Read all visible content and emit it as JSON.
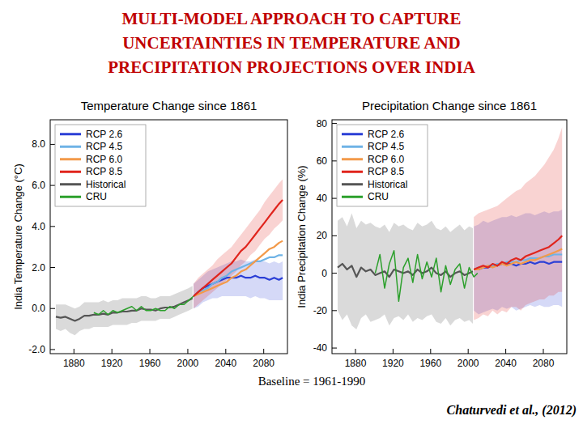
{
  "header": {
    "title": [
      "MULTI-MODEL APPROACH TO CAPTURE",
      "UNCERTAINTIES IN TEMPERATURE AND",
      "PRECIPITATION PROJECTIONS OVER INDIA"
    ]
  },
  "footer": {
    "baseline": "Baseline = 1961-1990",
    "source": "Chaturvedi et al., (2012)"
  },
  "chart_data": [
    {
      "type": "line",
      "title": "Temperature Change since 1861",
      "y_label": "India Temperature Change (°C)",
      "xlim": [
        1855,
        2105
      ],
      "xticks": [
        1880,
        1920,
        1960,
        2000,
        2040,
        2080
      ],
      "ylim": [
        -2.2,
        9.2
      ],
      "yticks": [
        {
          "value": -2,
          "label": "-2.0"
        },
        {
          "value": 0,
          "label": "0.0"
        },
        {
          "value": 2,
          "label": "2.0"
        },
        {
          "value": 4,
          "label": "4.0"
        },
        {
          "value": 6,
          "label": "6.0"
        },
        {
          "value": 8,
          "label": "8.0"
        }
      ],
      "grid": false,
      "legend": "upper left",
      "series": [
        {
          "name": "RCP 2.6",
          "color": "#2b3fd6",
          "x": [
            2006,
            2011,
            2016,
            2021,
            2026,
            2031,
            2036,
            2041,
            2046,
            2051,
            2056,
            2061,
            2066,
            2071,
            2076,
            2081,
            2086,
            2091,
            2096,
            2100
          ],
          "values": [
            0.6,
            0.8,
            1.0,
            1.1,
            1.2,
            1.3,
            1.4,
            1.5,
            1.5,
            1.5,
            1.6,
            1.5,
            1.5,
            1.6,
            1.5,
            1.5,
            1.4,
            1.5,
            1.4,
            1.5
          ],
          "lower": [
            0,
            0.1,
            0.3,
            0.4,
            0.5,
            0.5,
            0.6,
            0.6,
            0.6,
            0.6,
            0.6,
            0.6,
            0.5,
            0.6,
            0.5,
            0.5,
            0.4,
            0.4,
            0.4,
            0.4
          ],
          "upper": [
            1.2,
            1.4,
            1.6,
            1.8,
            1.9,
            2.0,
            2.1,
            2.2,
            2.3,
            2.3,
            2.4,
            2.3,
            2.3,
            2.4,
            2.3,
            2.3,
            2.2,
            2.3,
            2.2,
            2.3
          ]
        },
        {
          "name": "RCP 4.5",
          "color": "#6fb3e6",
          "x": [
            2006,
            2011,
            2016,
            2021,
            2026,
            2031,
            2036,
            2041,
            2046,
            2051,
            2056,
            2061,
            2066,
            2071,
            2076,
            2081,
            2086,
            2091,
            2096,
            2100
          ],
          "values": [
            0.6,
            0.8,
            0.9,
            1.0,
            1.2,
            1.3,
            1.5,
            1.6,
            1.8,
            1.9,
            2.0,
            2.1,
            2.2,
            2.3,
            2.3,
            2.4,
            2.5,
            2.5,
            2.6,
            2.6
          ]
        },
        {
          "name": "RCP 6.0",
          "color": "#f39a4a",
          "x": [
            2006,
            2011,
            2016,
            2021,
            2026,
            2031,
            2036,
            2041,
            2046,
            2051,
            2056,
            2061,
            2066,
            2071,
            2076,
            2081,
            2086,
            2091,
            2096,
            2100
          ],
          "values": [
            0.6,
            0.7,
            0.8,
            0.9,
            1.0,
            1.1,
            1.2,
            1.3,
            1.5,
            1.6,
            1.8,
            1.9,
            2.1,
            2.3,
            2.5,
            2.7,
            2.9,
            3.0,
            3.2,
            3.3
          ]
        },
        {
          "name": "RCP 8.5",
          "color": "#e0241c",
          "x": [
            2006,
            2011,
            2016,
            2021,
            2026,
            2031,
            2036,
            2041,
            2046,
            2051,
            2056,
            2061,
            2066,
            2071,
            2076,
            2081,
            2086,
            2091,
            2096,
            2100
          ],
          "values": [
            0.6,
            0.8,
            1.0,
            1.2,
            1.4,
            1.6,
            1.8,
            2.0,
            2.2,
            2.5,
            2.8,
            3.0,
            3.3,
            3.6,
            3.9,
            4.2,
            4.5,
            4.8,
            5.1,
            5.3
          ],
          "lower": [
            0,
            0.2,
            0.4,
            0.6,
            0.8,
            1.0,
            1.2,
            1.4,
            1.6,
            1.8,
            2.1,
            2.3,
            2.6,
            2.8,
            3.1,
            3.4,
            3.6,
            3.9,
            4.1,
            4.3
          ],
          "upper": [
            1.2,
            1.5,
            1.7,
            1.9,
            2.1,
            2.4,
            2.6,
            2.8,
            3.0,
            3.3,
            3.6,
            3.9,
            4.2,
            4.5,
            4.8,
            5.2,
            5.5,
            5.8,
            6.1,
            6.3
          ]
        },
        {
          "name": "Historical",
          "color": "#555555",
          "x": [
            1861,
            1866,
            1871,
            1876,
            1881,
            1886,
            1891,
            1896,
            1901,
            1906,
            1911,
            1916,
            1921,
            1926,
            1931,
            1936,
            1941,
            1946,
            1951,
            1956,
            1961,
            1966,
            1971,
            1976,
            1981,
            1986,
            1991,
            1996,
            2001,
            2005
          ],
          "values": [
            -0.4,
            -0.45,
            -0.4,
            -0.5,
            -0.6,
            -0.5,
            -0.35,
            -0.35,
            -0.3,
            -0.3,
            -0.25,
            -0.3,
            -0.2,
            -0.2,
            -0.15,
            -0.15,
            -0.1,
            -0.1,
            0,
            -0.05,
            -0.05,
            -0.1,
            0,
            0.05,
            0.05,
            0.1,
            0.2,
            0.3,
            0.4,
            0.5
          ],
          "lower": [
            -1.0,
            -1.1,
            -1.0,
            -1.2,
            -1.3,
            -1.1,
            -1.0,
            -1.0,
            -0.9,
            -0.9,
            -0.9,
            -0.9,
            -0.8,
            -0.8,
            -0.8,
            -0.8,
            -0.7,
            -0.7,
            -0.6,
            -0.6,
            -0.6,
            -0.6,
            -0.5,
            -0.5,
            -0.5,
            -0.4,
            -0.3,
            -0.2,
            -0.1,
            0.0
          ],
          "upper": [
            0.2,
            0.2,
            0.2,
            0.1,
            0.0,
            0.1,
            0.3,
            0.3,
            0.3,
            0.3,
            0.4,
            0.3,
            0.4,
            0.4,
            0.5,
            0.5,
            0.5,
            0.5,
            0.6,
            0.6,
            0.5,
            0.5,
            0.6,
            0.6,
            0.6,
            0.7,
            0.8,
            0.9,
            1.0,
            1.1
          ]
        },
        {
          "name": "CRU",
          "color": "#2ca02c",
          "x": [
            1901,
            1906,
            1911,
            1916,
            1921,
            1926,
            1931,
            1936,
            1941,
            1946,
            1951,
            1956,
            1961,
            1966,
            1971,
            1976,
            1981,
            1986,
            1991,
            1996,
            2001,
            2006,
            2010
          ],
          "values": [
            -0.2,
            -0.3,
            -0.1,
            -0.3,
            -0.1,
            -0.2,
            -0.1,
            0,
            0.1,
            -0.1,
            0.1,
            -0.1,
            -0.1,
            0,
            -0.1,
            -0.1,
            0.1,
            0,
            0.2,
            0.2,
            0.4,
            0.6,
            0.7
          ]
        }
      ]
    },
    {
      "type": "line",
      "title": "Precipitation Change since 1861",
      "y_label": "India Precipitation Change (%)",
      "xlim": [
        1855,
        2105
      ],
      "xticks": [
        1880,
        1920,
        1960,
        2000,
        2040,
        2080
      ],
      "ylim": [
        -43,
        82
      ],
      "yticks": [
        -40,
        -20,
        0,
        20,
        40,
        60,
        80
      ],
      "grid": false,
      "legend": "upper left",
      "series": [
        {
          "name": "RCP 2.6",
          "color": "#2b3fd6",
          "x": [
            2006,
            2011,
            2016,
            2021,
            2026,
            2031,
            2036,
            2041,
            2046,
            2051,
            2056,
            2061,
            2066,
            2071,
            2076,
            2081,
            2086,
            2091,
            2096,
            2100
          ],
          "values": [
            2,
            2,
            3,
            3,
            4,
            4,
            5,
            5,
            5,
            4,
            5,
            5,
            6,
            5,
            6,
            6,
            5,
            6,
            6,
            6
          ],
          "lower": [
            -20,
            -22,
            -21,
            -20,
            -19,
            -20,
            -18,
            -19,
            -18,
            -20,
            -19,
            -18,
            -17,
            -18,
            -17,
            -18,
            -18,
            -17,
            -17,
            -18
          ],
          "upper": [
            25,
            26,
            28,
            27,
            28,
            29,
            30,
            30,
            31,
            30,
            31,
            32,
            32,
            31,
            32,
            33,
            32,
            33,
            33,
            34
          ]
        },
        {
          "name": "RCP 4.5",
          "color": "#6fb3e6",
          "x": [
            2006,
            2011,
            2016,
            2021,
            2026,
            2031,
            2036,
            2041,
            2046,
            2051,
            2056,
            2061,
            2066,
            2071,
            2076,
            2081,
            2086,
            2091,
            2096,
            2100
          ],
          "values": [
            2,
            3,
            3,
            4,
            4,
            5,
            5,
            6,
            6,
            6,
            7,
            7,
            8,
            8,
            8,
            9,
            9,
            10,
            10,
            10
          ]
        },
        {
          "name": "RCP 6.0",
          "color": "#f39a4a",
          "x": [
            2006,
            2011,
            2016,
            2021,
            2026,
            2031,
            2036,
            2041,
            2046,
            2051,
            2056,
            2061,
            2066,
            2071,
            2076,
            2081,
            2086,
            2091,
            2096,
            2100
          ],
          "values": [
            2,
            2,
            3,
            4,
            3,
            4,
            5,
            4,
            5,
            6,
            5,
            6,
            7,
            7,
            8,
            9,
            10,
            11,
            12,
            13
          ]
        },
        {
          "name": "RCP 8.5",
          "color": "#e0241c",
          "x": [
            2006,
            2011,
            2016,
            2021,
            2026,
            2031,
            2036,
            2041,
            2046,
            2051,
            2056,
            2061,
            2066,
            2071,
            2076,
            2081,
            2086,
            2091,
            2096,
            2100
          ],
          "values": [
            2,
            3,
            4,
            3,
            5,
            4,
            6,
            5,
            7,
            8,
            7,
            9,
            10,
            11,
            12,
            13,
            14,
            16,
            18,
            20
          ],
          "lower": [
            -25,
            -24,
            -22,
            -23,
            -20,
            -22,
            -20,
            -21,
            -18,
            -18,
            -20,
            -17,
            -16,
            -15,
            -14,
            -14,
            -12,
            -12,
            -10,
            -10
          ],
          "upper": [
            30,
            32,
            33,
            34,
            35,
            36,
            38,
            40,
            42,
            44,
            45,
            48,
            50,
            52,
            55,
            58,
            62,
            66,
            72,
            78
          ]
        },
        {
          "name": "Historical",
          "color": "#555555",
          "x": [
            1861,
            1866,
            1871,
            1876,
            1881,
            1886,
            1891,
            1896,
            1901,
            1906,
            1911,
            1916,
            1921,
            1926,
            1931,
            1936,
            1941,
            1946,
            1951,
            1956,
            1961,
            1966,
            1971,
            1976,
            1981,
            1986,
            1991,
            1996,
            2001,
            2005
          ],
          "values": [
            3,
            5,
            2,
            4,
            -2,
            3,
            1,
            2,
            -1,
            0,
            1,
            -2,
            2,
            1,
            0,
            1,
            -1,
            2,
            0,
            1,
            3,
            0,
            -1,
            1,
            -2,
            0,
            1,
            -1,
            0,
            1
          ],
          "lower": [
            -20,
            -25,
            -22,
            -28,
            -30,
            -24,
            -22,
            -26,
            -25,
            -24,
            -22,
            -28,
            -24,
            -23,
            -25,
            -22,
            -26,
            -24,
            -25,
            -23,
            -22,
            -26,
            -27,
            -24,
            -28,
            -25,
            -24,
            -26,
            -25,
            -27
          ],
          "upper": [
            28,
            30,
            25,
            32,
            24,
            28,
            26,
            27,
            25,
            24,
            26,
            22,
            27,
            25,
            26,
            24,
            23,
            27,
            25,
            26,
            28,
            24,
            23,
            25,
            22,
            24,
            26,
            23,
            25,
            24
          ]
        },
        {
          "name": "CRU",
          "color": "#2ca02c",
          "x": [
            1901,
            1906,
            1911,
            1916,
            1921,
            1926,
            1931,
            1936,
            1941,
            1946,
            1951,
            1956,
            1961,
            1966,
            1971,
            1976,
            1981,
            1986,
            1991,
            1996,
            2001,
            2006,
            2010
          ],
          "values": [
            0,
            10,
            -8,
            5,
            12,
            -15,
            3,
            8,
            -5,
            10,
            -3,
            6,
            -2,
            8,
            -10,
            4,
            -6,
            2,
            5,
            -8,
            3,
            -2,
            0
          ]
        }
      ]
    }
  ]
}
